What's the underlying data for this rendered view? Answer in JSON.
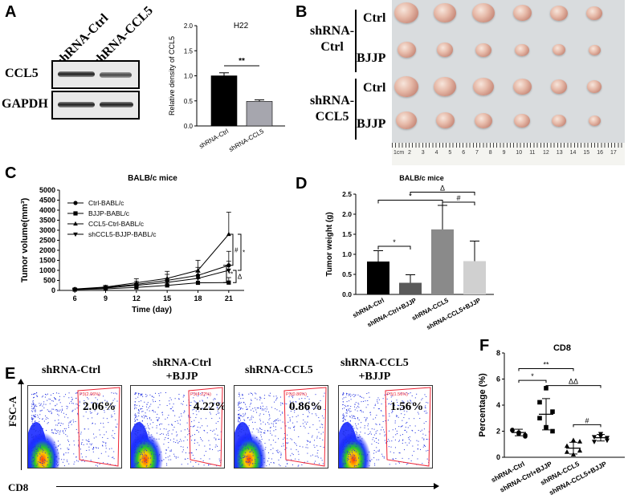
{
  "panels": {
    "a": "A",
    "b": "B",
    "c": "C",
    "d": "D",
    "e": "E",
    "f": "F"
  },
  "panel_a": {
    "lanes": [
      "shRNA-Ctrl",
      "shRNA-CCL5"
    ],
    "blots": [
      "CCL5",
      "GAPDH"
    ]
  },
  "panel_b": {
    "groups": [
      "shRNA-\nCtrl",
      "shRNA-\nCCL5"
    ],
    "group1_line1": "shRNA-",
    "group1_line2": "Ctrl",
    "group2_line1": "shRNA-",
    "group2_line2": "CCL5",
    "rows": [
      "Ctrl",
      "BJJP",
      "Ctrl",
      "BJJP"
    ],
    "ruler_start": "1cm",
    "ruler_ticks": [
      "2",
      "3",
      "4",
      "5",
      "6",
      "7",
      "8",
      "9",
      "10",
      "11",
      "12",
      "13",
      "14",
      "15",
      "16",
      "17"
    ]
  },
  "panel_e": {
    "labels": [
      "shRNA-Ctrl",
      "shRNA-Ctrl\n+BJJP",
      "shRNA-CCL5",
      "shRNA-CCL5\n+BJJP"
    ],
    "label_ctrl": "shRNA-Ctrl",
    "label_ctrl_bjjp_1": "shRNA-Ctrl",
    "label_ctrl_bjjp_2": "+BJJP",
    "label_ccl5": "shRNA-CCL5",
    "label_ccl5_bjjp_1": "shRNA-CCL5",
    "label_ccl5_bjjp_2": "+BJJP",
    "percentages": [
      "2.06%",
      "4.22%",
      "0.86%",
      "1.56%"
    ],
    "gate_labels": [
      "P3(2.06%)",
      "P3(4.22%)",
      "P3(0.86%)",
      "P3(1.56%)"
    ],
    "y_axis": "FSC-A",
    "x_axis": "CD8"
  },
  "chart_data": [
    {
      "id": "A-bar",
      "type": "bar",
      "title": "H22",
      "ylabel": "Relative density of CCL5",
      "xlabel": "",
      "categories": [
        "shRNA-Ctrl",
        "shRNA-CCL5"
      ],
      "values": [
        1.0,
        0.49
      ],
      "errors": [
        0.06,
        0.03
      ],
      "colors": [
        "#000000",
        "#a6a6ae"
      ],
      "ylim": [
        0,
        2.0
      ],
      "yticks": [
        "0.0",
        "0.5",
        "1.0",
        "1.5",
        "2.0"
      ],
      "annotations": [
        "**"
      ]
    },
    {
      "id": "C-line",
      "type": "line",
      "title": "BALB/c mice",
      "xlabel": "Time (day)",
      "ylabel": "Tumor volume(mm³)",
      "x": [
        6,
        9,
        12,
        15,
        18,
        21
      ],
      "ylim": [
        0,
        5000
      ],
      "yticks": [
        "0",
        "500",
        "1000",
        "1500",
        "2000",
        "2500",
        "3000",
        "3500",
        "4000",
        "4500",
        "5000"
      ],
      "xticks": [
        "6",
        "9",
        "12",
        "15",
        "18",
        "21"
      ],
      "series": [
        {
          "name": "Ctrl-BABL/c",
          "marker": "circle",
          "values": [
            60,
            150,
            300,
            500,
            750,
            1250
          ],
          "errors": [
            30,
            60,
            150,
            300,
            400,
            700
          ]
        },
        {
          "name": "BJJP-BABL/c",
          "marker": "square",
          "values": [
            40,
            80,
            150,
            250,
            380,
            390
          ],
          "errors": [
            20,
            40,
            80,
            150,
            200,
            250
          ]
        },
        {
          "name": "CCL5-Ctrl-BABL/c",
          "marker": "triangle",
          "values": [
            70,
            170,
            380,
            600,
            1000,
            2800
          ],
          "errors": [
            30,
            80,
            200,
            350,
            500,
            1100
          ]
        },
        {
          "name": "shCCL5-BJJP-BABL/c",
          "marker": "triangle-down",
          "values": [
            50,
            120,
            250,
            400,
            600,
            1000
          ],
          "errors": [
            20,
            50,
            120,
            200,
            300,
            450
          ]
        }
      ],
      "annotations": [
        "#",
        "*",
        "**",
        "Δ"
      ]
    },
    {
      "id": "D-bar",
      "type": "bar",
      "title": "BALB/c mice",
      "xlabel": "",
      "ylabel": "Tumor weight (g)",
      "categories": [
        "shRNA-Ctrl",
        "shRNA-Ctrl+BJJP",
        "shRNA-CCL5",
        "shRNA-CCL5+BJJP"
      ],
      "values": [
        0.82,
        0.29,
        1.62,
        0.83
      ],
      "errors": [
        0.27,
        0.2,
        0.6,
        0.5
      ],
      "colors": [
        "#000000",
        "#5a5a5a",
        "#8a8a8a",
        "#d0d0d0"
      ],
      "ylim": [
        0,
        2.5
      ],
      "yticks": [
        "0.0",
        "0.5",
        "1.0",
        "1.5",
        "2.0",
        "2.5"
      ],
      "annotations": [
        "*",
        "*",
        "Δ",
        "#"
      ]
    },
    {
      "id": "F-scatter",
      "type": "scatter",
      "title": "CD8",
      "ylabel": "Percentage (%)",
      "xlabel": "",
      "categories": [
        "shRNA-Ctrl",
        "shRNA-Ctrl+BJJP",
        "shRNA-CCL5",
        "shRNA-CCL5+BJJP"
      ],
      "series": [
        {
          "name": "shRNA-Ctrl",
          "marker": "circle",
          "points": [
            2.06,
            1.8,
            1.6,
            2.1,
            1.9,
            1.7
          ],
          "mean": 1.9,
          "sd": 0.25
        },
        {
          "name": "shRNA-Ctrl+BJJP",
          "marker": "square",
          "points": [
            4.22,
            5.3,
            3.5,
            3.0,
            2.3,
            2.0
          ],
          "mean": 3.3,
          "sd": 1.2
        },
        {
          "name": "shRNA-CCL5",
          "marker": "triangle",
          "points": [
            0.86,
            1.3,
            0.5,
            0.4,
            0.2,
            1.2
          ],
          "mean": 0.7,
          "sd": 0.45
        },
        {
          "name": "shRNA-CCL5+BJJP",
          "marker": "triangle-down",
          "points": [
            1.56,
            1.8,
            1.3,
            1.2,
            1.6,
            1.5
          ],
          "mean": 1.5,
          "sd": 0.25
        }
      ],
      "ylim": [
        0,
        8
      ],
      "yticks": [
        "0",
        "2",
        "4",
        "6",
        "8"
      ],
      "annotations": [
        "**",
        "*",
        "ΔΔ",
        "#"
      ]
    }
  ]
}
